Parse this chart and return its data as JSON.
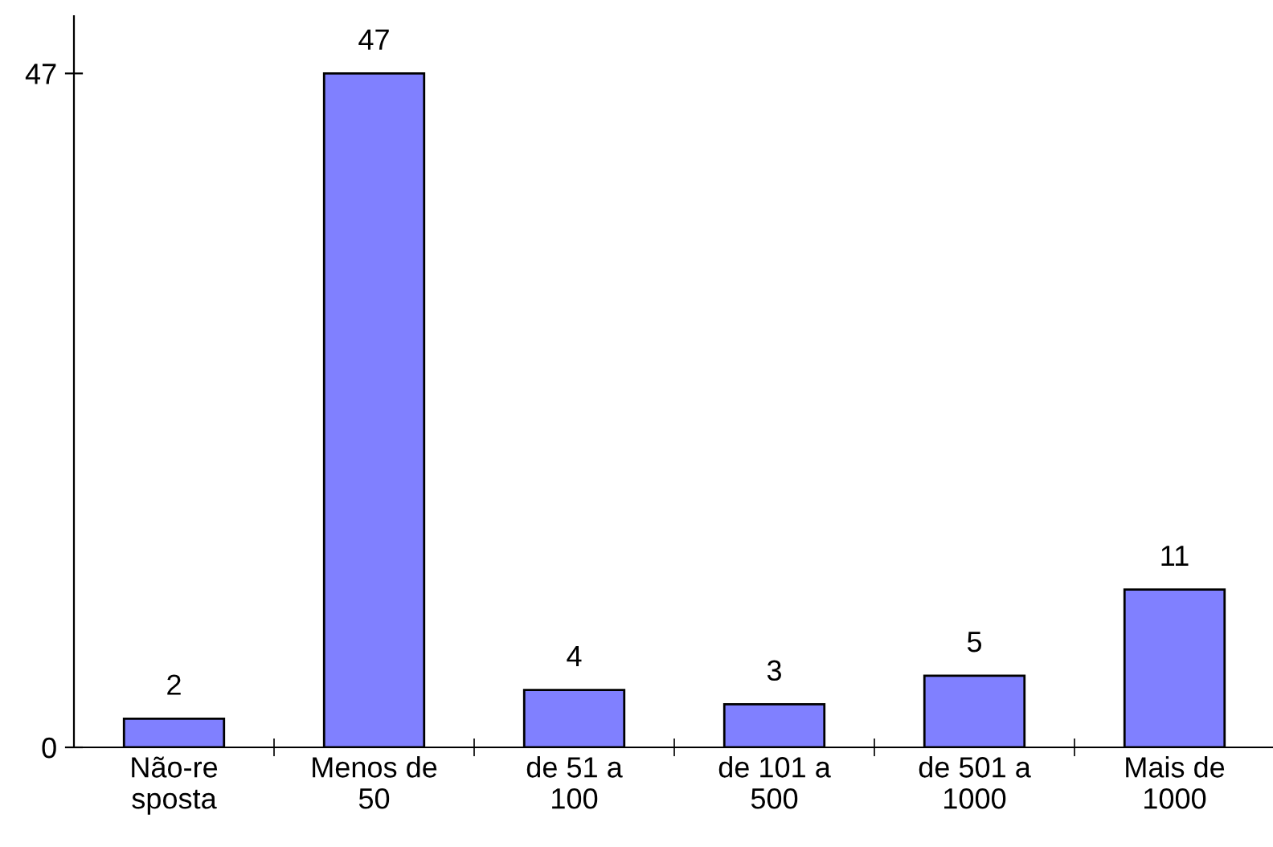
{
  "chart_data": {
    "type": "bar",
    "categories": [
      "Não-re\nsposta",
      "Menos de\n50",
      "de 51 a\n100",
      "de 101 a\n500",
      "de 501 a\n1000",
      "Mais de\n1000"
    ],
    "values": [
      2,
      47,
      4,
      3,
      5,
      11
    ],
    "color": "#8080ff",
    "ylim": [
      0,
      51
    ],
    "yticks": [
      0,
      47
    ],
    "data_labels": true,
    "grid": false,
    "legend": false
  }
}
